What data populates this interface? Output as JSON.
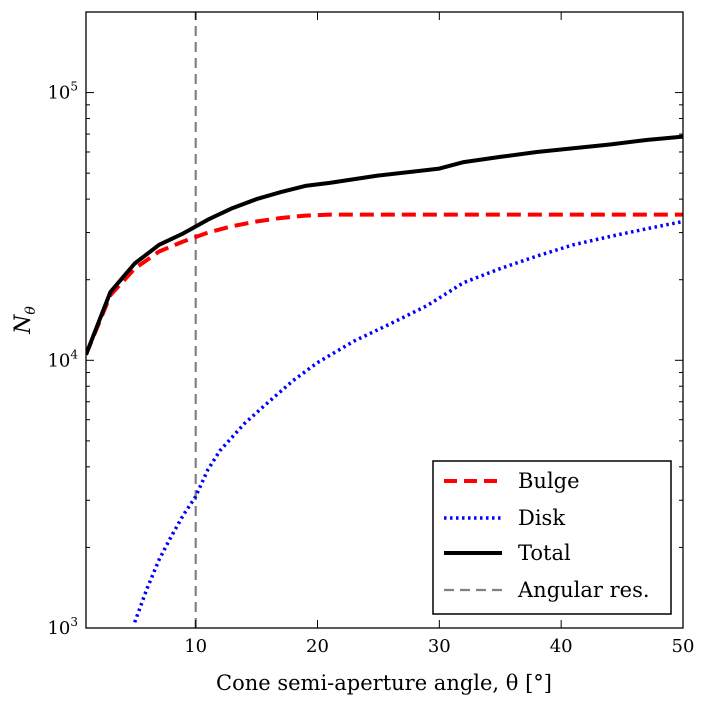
{
  "chart_data": {
    "type": "line",
    "title": "",
    "xlabel": "Cone semi-aperture angle, θ [°]",
    "ylabel_main": "N",
    "ylabel_sub": "θ",
    "xlim": [
      1,
      50
    ],
    "ylim": [
      1000,
      200000
    ],
    "yscale": "log",
    "grid": false,
    "legend_position": "bottom-right",
    "x_ticks": [
      {
        "value": 10,
        "label": "10"
      },
      {
        "value": 20,
        "label": "20"
      },
      {
        "value": 30,
        "label": "30"
      },
      {
        "value": 40,
        "label": "40"
      },
      {
        "value": 50,
        "label": "50"
      }
    ],
    "y_ticks": [
      {
        "value": 1000,
        "base": "10",
        "exp": "3"
      },
      {
        "value": 10000,
        "base": "10",
        "exp": "4"
      },
      {
        "value": 100000,
        "base": "10",
        "exp": "5"
      }
    ],
    "series": [
      {
        "name": "Bulge",
        "color": "#ff0000",
        "style": "dashed",
        "x": [
          1,
          3,
          5,
          7,
          9,
          11,
          13,
          15,
          17,
          19,
          21,
          25,
          30,
          35,
          40,
          45,
          50
        ],
        "y": [
          10500,
          17500,
          22000,
          25500,
          27800,
          30000,
          31700,
          33000,
          34000,
          34700,
          35000,
          35000,
          35000,
          35000,
          35000,
          35000,
          35000
        ]
      },
      {
        "name": "Disk",
        "color": "#0000ff",
        "style": "dotted",
        "x": [
          5,
          6,
          7,
          8,
          9,
          10,
          11,
          12,
          14,
          16,
          18,
          20,
          23,
          26,
          29,
          32,
          35,
          38,
          41,
          44,
          47,
          50
        ],
        "y": [
          1050,
          1400,
          1800,
          2200,
          2650,
          3100,
          3900,
          4600,
          5800,
          7000,
          8400,
          9800,
          11800,
          13700,
          16000,
          19500,
          22000,
          24500,
          27000,
          29000,
          31000,
          33000
        ]
      },
      {
        "name": "Total",
        "color": "#000000",
        "style": "solid",
        "x": [
          1,
          3,
          5,
          7,
          9,
          11,
          13,
          15,
          17,
          19,
          21,
          25,
          30,
          32,
          35,
          38,
          41,
          44,
          47,
          50
        ],
        "y": [
          10500,
          18000,
          23000,
          27000,
          29800,
          33500,
          37000,
          40000,
          42500,
          44800,
          46000,
          49000,
          52000,
          55000,
          57500,
          60000,
          62000,
          64000,
          66500,
          68500
        ]
      },
      {
        "name": "Angular res.",
        "color": "#808080",
        "style": "dashed-vertical",
        "x": [
          10,
          10
        ],
        "y": [
          1000,
          200000
        ]
      }
    ]
  }
}
